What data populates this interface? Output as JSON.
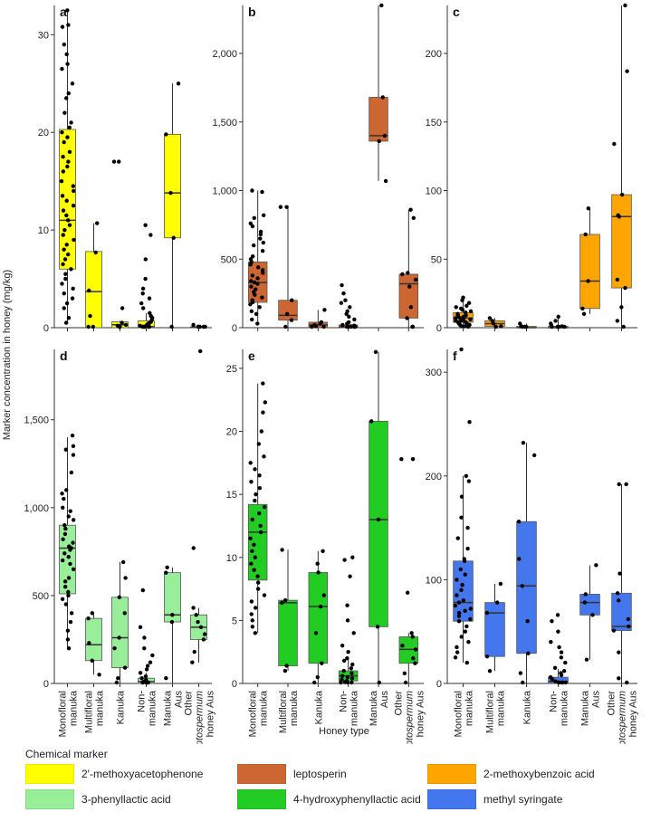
{
  "figure": {
    "y_axis_title": "Marker concentration in honey (mg/kg)",
    "x_axis_title": "Honey type"
  },
  "legend": {
    "title": "Chemical marker",
    "items": [
      {
        "label": "2'-methoxyacetophenone",
        "color": "#ffff00"
      },
      {
        "label": "leptosperin",
        "color": "#cc6633"
      },
      {
        "label": "2-methoxybenzoic acid",
        "color": "#ffa500"
      },
      {
        "label": "3-phenyllactic acid",
        "color": "#99ee99"
      },
      {
        "label": "4-hydroxyphenyllactic acid",
        "color": "#22cc22"
      },
      {
        "label": "methyl syringate",
        "color": "#4477ee"
      }
    ]
  },
  "categories": [
    {
      "line1": "Monofloral",
      "line2": "manuka",
      "line3": "",
      "italic_first": false
    },
    {
      "line1": "Multifloral",
      "line2": "manuka",
      "line3": "",
      "italic_first": false
    },
    {
      "line1": "Kanuka",
      "line2": "",
      "line3": "",
      "italic_first": false
    },
    {
      "line1": "Non-",
      "line2": "manuka",
      "line3": "",
      "italic_first": false
    },
    {
      "line1": "Manuka",
      "line2": "Aus",
      "line3": "",
      "italic_first": false
    },
    {
      "line1": "Other",
      "line2": "Leptospermum",
      "line3": "honey Aus",
      "italic_first": true
    }
  ],
  "chart_data": [
    {
      "type": "box",
      "panel": "a",
      "marker": "2'-methoxyacetophenone",
      "color": "#ffff00",
      "ylim": [
        0,
        33
      ],
      "ticks": [
        0,
        10,
        20,
        30
      ],
      "tick_labels": [
        "0",
        "10",
        "20",
        "30"
      ],
      "boxes": [
        {
          "category": "Monofloral manuka",
          "q1": 6.0,
          "median": 11.0,
          "q3": 20.3,
          "whisker_low": 0.5,
          "whisker_high": 32.5,
          "points": [
            32.5,
            31,
            30.8,
            29,
            28,
            27,
            26.5,
            25,
            24,
            23.5,
            22,
            21,
            20.5,
            20,
            19.5,
            19,
            18,
            17.5,
            17,
            16.5,
            16,
            15,
            14.5,
            14,
            13.5,
            13,
            12.5,
            12,
            11.5,
            11,
            10.5,
            10,
            9.5,
            9,
            8.5,
            8,
            7.5,
            7,
            6.5,
            6,
            5.5,
            5,
            4.5,
            4,
            3.5,
            3,
            2.5,
            2,
            1,
            0.5
          ]
        },
        {
          "category": "Multifloral manuka",
          "q1": 0.0,
          "median": 3.7,
          "q3": 7.8,
          "whisker_low": 0.0,
          "whisker_high": 10.7,
          "points": [
            10.7,
            7.7,
            3.8,
            1.2,
            0,
            0
          ]
        },
        {
          "category": "Kanuka",
          "q1": 0.0,
          "median": 0.3,
          "q3": 0.6,
          "whisker_low": 0.0,
          "whisker_high": 0.7,
          "points": [
            17,
            17,
            2,
            0.5,
            0.3,
            0.2,
            0,
            0
          ]
        },
        {
          "category": "Non-manuka",
          "q1": 0.0,
          "median": 0.1,
          "q3": 0.7,
          "whisker_low": 0.0,
          "whisker_high": 1.5,
          "points": [
            10.5,
            9.5,
            7,
            5,
            4,
            3.5,
            3,
            2.5,
            2,
            1.5,
            1.2,
            1,
            0.8,
            0.6,
            0.5,
            0.4,
            0.3,
            0.2,
            0.1,
            0.1,
            0,
            0,
            0,
            0,
            0
          ]
        },
        {
          "category": "Manuka Aus",
          "q1": 9.2,
          "median": 13.8,
          "q3": 19.8,
          "whisker_low": 0.0,
          "whisker_high": 25.0,
          "points": [
            25,
            19.8,
            13.8,
            9.2,
            0
          ]
        },
        {
          "category": "Other Leptospermum honey Aus",
          "q1": 0.0,
          "median": 0.05,
          "q3": 0.1,
          "whisker_low": 0.0,
          "whisker_high": 0.3,
          "points": [
            0.3,
            0.1,
            0,
            0,
            0,
            0
          ]
        }
      ]
    },
    {
      "type": "box",
      "panel": "b",
      "marker": "leptosperin",
      "color": "#cc6633",
      "ylim": [
        0,
        2350
      ],
      "ticks": [
        0,
        500,
        1000,
        1500,
        2000
      ],
      "tick_labels": [
        "0",
        "500",
        "1,000",
        "1,500",
        "2,000"
      ],
      "boxes": [
        {
          "category": "Monofloral manuka",
          "q1": 185,
          "median": 330,
          "q3": 480,
          "whisker_low": 30,
          "whisker_high": 1000,
          "points": [
            1000,
            990,
            820,
            800,
            760,
            740,
            700,
            680,
            650,
            620,
            600,
            560,
            520,
            500,
            480,
            460,
            440,
            420,
            400,
            380,
            360,
            340,
            330,
            320,
            300,
            280,
            260,
            240,
            220,
            200,
            185,
            170,
            150,
            120,
            100,
            60,
            30
          ]
        },
        {
          "category": "Multifloral manuka",
          "q1": 55,
          "median": 90,
          "q3": 200,
          "whisker_low": 0,
          "whisker_high": 880,
          "points": [
            880,
            880,
            200,
            100,
            55,
            0
          ]
        },
        {
          "category": "Kanuka",
          "q1": 0,
          "median": 20,
          "q3": 40,
          "whisker_low": 0,
          "whisker_high": 130,
          "points": [
            130,
            40,
            30,
            20,
            10,
            5,
            0,
            0
          ]
        },
        {
          "category": "Non-manuka",
          "q1": 0,
          "median": 5,
          "q3": 20,
          "whisker_low": 0,
          "whisker_high": 40,
          "points": [
            310,
            250,
            200,
            180,
            150,
            120,
            100,
            80,
            60,
            40,
            30,
            20,
            15,
            10,
            5,
            5,
            0,
            0,
            0,
            0,
            0,
            0
          ]
        },
        {
          "category": "Manuka Aus",
          "q1": 1360,
          "median": 1400,
          "q3": 1680,
          "whisker_low": 1070,
          "whisker_high": 2350,
          "points": [
            2350,
            1680,
            1400,
            1360,
            1070
          ]
        },
        {
          "category": "Other Leptospermum honey Aus",
          "q1": 70,
          "median": 320,
          "q3": 390,
          "whisker_low": 0,
          "whisker_high": 860,
          "points": [
            860,
            800,
            400,
            390,
            350,
            300,
            150,
            70,
            0,
            0
          ]
        }
      ]
    },
    {
      "type": "box",
      "panel": "c",
      "marker": "2-methoxybenzoic acid",
      "color": "#ffa500",
      "ylim": [
        0,
        235
      ],
      "ticks": [
        0,
        50,
        100,
        150,
        200
      ],
      "tick_labels": [
        "0",
        "50",
        "100",
        "150",
        "200"
      ],
      "boxes": [
        {
          "category": "Monofloral manuka",
          "q1": 4,
          "median": 7,
          "q3": 11,
          "whisker_low": 0,
          "whisker_high": 22,
          "points": [
            22,
            20,
            18,
            16,
            15,
            14,
            13,
            12,
            11,
            10,
            9,
            9,
            8,
            8,
            7,
            7,
            6,
            6,
            5,
            5,
            4,
            4,
            3,
            3,
            2,
            2,
            1,
            1,
            0
          ]
        },
        {
          "category": "Multifloral manuka",
          "q1": 1,
          "median": 3,
          "q3": 5,
          "whisker_low": 0,
          "whisker_high": 7,
          "points": [
            7,
            5,
            3,
            1,
            0
          ]
        },
        {
          "category": "Kanuka",
          "q1": 0,
          "median": 0,
          "q3": 1,
          "whisker_low": 0,
          "whisker_high": 3,
          "points": [
            3,
            1,
            0,
            0,
            0
          ]
        },
        {
          "category": "Non-manuka",
          "q1": 0,
          "median": 0,
          "q3": 1,
          "whisker_low": 0,
          "whisker_high": 8,
          "points": [
            8,
            5,
            3,
            2,
            1,
            0,
            0,
            0,
            0
          ]
        },
        {
          "category": "Manuka Aus",
          "q1": 14,
          "median": 34,
          "q3": 68,
          "whisker_low": 10,
          "whisker_high": 87,
          "points": [
            87,
            68,
            34,
            14,
            10
          ]
        },
        {
          "category": "Other Leptospermum honey Aus",
          "q1": 29,
          "median": 81,
          "q3": 97,
          "whisker_low": 0,
          "whisker_high": 235,
          "points": [
            235,
            187,
            134,
            97,
            82,
            81,
            35,
            29,
            15,
            5,
            0
          ]
        }
      ]
    },
    {
      "type": "box",
      "panel": "d",
      "marker": "3-phenyllactic acid",
      "color": "#99ee99",
      "ylim": [
        0,
        1900
      ],
      "ticks": [
        0,
        500,
        1000,
        1500
      ],
      "tick_labels": [
        "0",
        "500",
        "1,000",
        "1,500"
      ],
      "boxes": [
        {
          "category": "Monofloral manuka",
          "q1": 510,
          "median": 770,
          "q3": 900,
          "whisker_low": 200,
          "whisker_high": 1400,
          "points": [
            1410,
            1350,
            1330,
            1300,
            1200,
            1100,
            1080,
            1050,
            1000,
            980,
            950,
            930,
            900,
            880,
            850,
            820,
            800,
            780,
            770,
            760,
            740,
            720,
            700,
            680,
            650,
            600,
            580,
            550,
            520,
            500,
            480,
            450,
            400,
            350,
            300,
            250,
            200
          ]
        },
        {
          "category": "Multifloral manuka",
          "q1": 130,
          "median": 220,
          "q3": 370,
          "whisker_low": 50,
          "whisker_high": 400,
          "points": [
            400,
            370,
            230,
            130,
            50
          ]
        },
        {
          "category": "Kanuka",
          "q1": 90,
          "median": 260,
          "q3": 490,
          "whisker_low": 0,
          "whisker_high": 690,
          "points": [
            690,
            600,
            490,
            400,
            260,
            200,
            90,
            30,
            0
          ]
        },
        {
          "category": "Non-manuka",
          "q1": 0,
          "median": 10,
          "q3": 30,
          "whisker_low": 0,
          "whisker_high": 60,
          "points": [
            530,
            320,
            260,
            200,
            160,
            120,
            100,
            80,
            60,
            40,
            30,
            20,
            10,
            5,
            0,
            0,
            0,
            0,
            0,
            0
          ]
        },
        {
          "category": "Manuka Aus",
          "q1": 350,
          "median": 390,
          "q3": 630,
          "whisker_low": 0,
          "whisker_high": 660,
          "points": [
            660,
            630,
            390,
            350,
            30
          ]
        },
        {
          "category": "Other Leptospermum honey Aus",
          "q1": 250,
          "median": 320,
          "q3": 390,
          "whisker_low": 120,
          "whisker_high": 430,
          "points": [
            1890,
            770,
            430,
            390,
            350,
            320,
            280,
            250,
            180,
            120
          ]
        }
      ]
    },
    {
      "type": "box",
      "panel": "e",
      "marker": "4-hydroxyphenyllactic acid",
      "color": "#22cc22",
      "ylim": [
        0,
        26.5
      ],
      "ticks": [
        0,
        5,
        10,
        15,
        20,
        25
      ],
      "tick_labels": [
        "0",
        "5",
        "10",
        "15",
        "20",
        "25"
      ],
      "boxes": [
        {
          "category": "Monofloral manuka",
          "q1": 8.2,
          "median": 12.0,
          "q3": 14.2,
          "whisker_low": 4.0,
          "whisker_high": 23.8,
          "points": [
            23.8,
            22.3,
            21.5,
            20,
            19,
            18,
            17.5,
            17,
            16.5,
            16,
            15.5,
            15,
            14.5,
            14,
            13.5,
            13,
            12.5,
            12,
            11.5,
            11,
            10.5,
            10,
            9.5,
            9,
            8.5,
            8,
            7.5,
            7,
            6.5,
            6,
            5.5,
            5,
            4.5,
            4
          ]
        },
        {
          "category": "Multifloral manuka",
          "q1": 1.4,
          "median": 6.4,
          "q3": 6.6,
          "whisker_low": 1.0,
          "whisker_high": 10.6,
          "points": [
            10.6,
            6.6,
            6.4,
            1.4,
            1.0
          ]
        },
        {
          "category": "Kanuka",
          "q1": 1.6,
          "median": 6.1,
          "q3": 8.8,
          "whisker_low": 0,
          "whisker_high": 10.5,
          "points": [
            10.5,
            9.5,
            8.8,
            7,
            6.1,
            4,
            1.6,
            0.5,
            0
          ]
        },
        {
          "category": "Non-manuka",
          "q1": 0.2,
          "median": 0.6,
          "q3": 1.0,
          "whisker_low": 0,
          "whisker_high": 2.0,
          "points": [
            10,
            9.8,
            8.5,
            6.2,
            5,
            4,
            3,
            2.5,
            2,
            1.8,
            1.5,
            1.2,
            1,
            0.8,
            0.6,
            0.5,
            0.4,
            0.3,
            0.2,
            0.1,
            0,
            0,
            0
          ]
        },
        {
          "category": "Manuka Aus",
          "q1": 4.5,
          "median": 13.0,
          "q3": 20.8,
          "whisker_low": 0,
          "whisker_high": 26.3,
          "points": [
            26.3,
            20.8,
            13.0,
            4.5,
            0
          ]
        },
        {
          "category": "Other Leptospermum honey Aus",
          "q1": 1.6,
          "median": 2.7,
          "q3": 3.7,
          "whisker_low": 0,
          "whisker_high": 4.0,
          "points": [
            17.8,
            17.8,
            7.2,
            4,
            3.7,
            3,
            2.7,
            2,
            1.6,
            0.8,
            0
          ]
        }
      ]
    },
    {
      "type": "box",
      "panel": "f",
      "marker": "methyl syringate",
      "color": "#4477ee",
      "ylim": [
        0,
        322
      ],
      "ticks": [
        0,
        100,
        200,
        300
      ],
      "tick_labels": [
        "0",
        "100",
        "200",
        "300"
      ],
      "boxes": [
        {
          "category": "Monofloral manuka",
          "q1": 60,
          "median": 78,
          "q3": 118,
          "whisker_low": 20,
          "whisker_high": 200,
          "points": [
            322,
            252,
            200,
            195,
            180,
            160,
            150,
            140,
            130,
            120,
            118,
            110,
            105,
            100,
            95,
            90,
            85,
            80,
            78,
            75,
            72,
            70,
            68,
            65,
            62,
            60,
            55,
            50,
            45,
            40,
            35,
            30,
            25,
            20
          ]
        },
        {
          "category": "Multifloral manuka",
          "q1": 26,
          "median": 68,
          "q3": 78,
          "whisker_low": 12,
          "whisker_high": 96,
          "points": [
            96,
            78,
            68,
            26,
            12
          ]
        },
        {
          "category": "Kanuka",
          "q1": 29,
          "median": 94,
          "q3": 156,
          "whisker_low": 0,
          "whisker_high": 232,
          "points": [
            232,
            220,
            156,
            120,
            94,
            60,
            29,
            10,
            0
          ]
        },
        {
          "category": "Non-manuka",
          "q1": 0,
          "median": 2,
          "q3": 6,
          "whisker_low": 0,
          "whisker_high": 14,
          "points": [
            66,
            60,
            50,
            40,
            35,
            30,
            25,
            20,
            15,
            12,
            10,
            8,
            6,
            4,
            2,
            1,
            0,
            0,
            0,
            0
          ]
        },
        {
          "category": "Manuka Aus",
          "q1": 66,
          "median": 78,
          "q3": 86,
          "whisker_low": 23,
          "whisker_high": 114,
          "points": [
            114,
            86,
            78,
            66,
            23
          ]
        },
        {
          "category": "Other Leptospermum honey Aus",
          "q1": 51,
          "median": 55,
          "q3": 87,
          "whisker_low": 0,
          "whisker_high": 192,
          "points": [
            192,
            192,
            106,
            87,
            80,
            62,
            55,
            51,
            30,
            5,
            0
          ]
        }
      ]
    }
  ]
}
